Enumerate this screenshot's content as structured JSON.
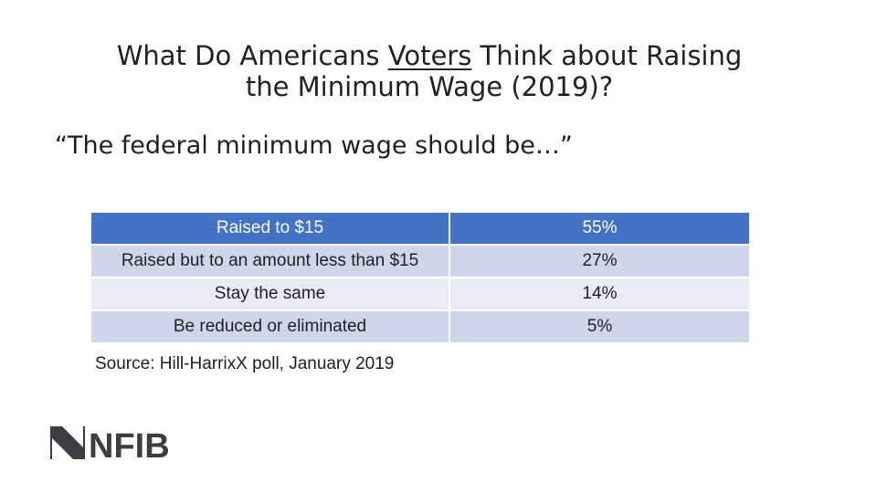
{
  "title": {
    "before": "What Do Americans ",
    "underlined": "Voters",
    "after": " Think about Raising",
    "line2": "the Minimum Wage (2019)?"
  },
  "quote": "“The federal minimum wage should be…”",
  "table": {
    "rows": [
      {
        "label": "Raised to $15",
        "value": "55%"
      },
      {
        "label": "Raised but to an amount less than $15",
        "value": "27%"
      },
      {
        "label": "Stay the same",
        "value": "14%"
      },
      {
        "label": "Be reduced or eliminated",
        "value": "5%"
      }
    ],
    "colors": {
      "header": "#4472c4",
      "odd": "#cfd5ea",
      "even": "#e9ebf5"
    }
  },
  "source": "Source: Hill-HarrixX poll, January 2019",
  "logo": {
    "text": "NFIB",
    "color": "#3b3f45"
  }
}
